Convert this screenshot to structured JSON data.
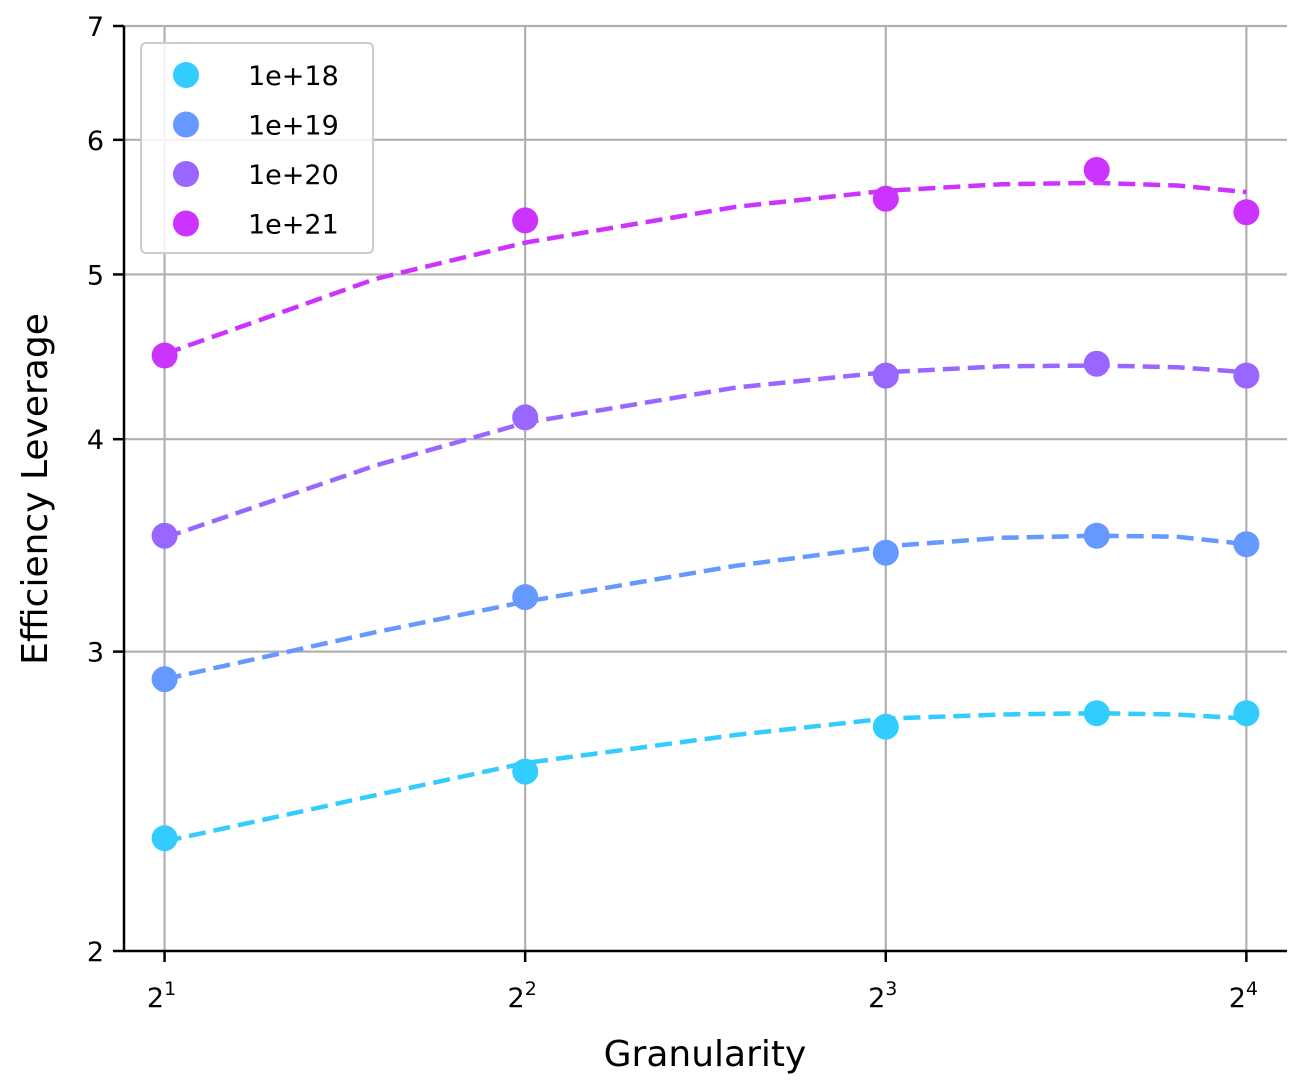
{
  "chart_data": {
    "type": "scatter",
    "xlabel": "Granularity",
    "ylabel": "Efficiency Leverage",
    "x_scale": "log2",
    "y_scale": "log",
    "xlim": [
      1.85,
      17.3
    ],
    "ylim": [
      2,
      7
    ],
    "x_ticks": [
      {
        "value": 2,
        "base": "2",
        "exp": "1"
      },
      {
        "value": 4,
        "base": "2",
        "exp": "2"
      },
      {
        "value": 8,
        "base": "2",
        "exp": "3"
      },
      {
        "value": 16,
        "base": "2",
        "exp": "4"
      }
    ],
    "y_ticks": [
      {
        "value": 2,
        "label": "2"
      },
      {
        "value": 3,
        "label": "3"
      },
      {
        "value": 4,
        "label": "4"
      },
      {
        "value": 5,
        "label": "5"
      },
      {
        "value": 6,
        "label": "6"
      },
      {
        "value": 7,
        "label": "7"
      }
    ],
    "grid": true,
    "legend_position": "top-left",
    "series": [
      {
        "name": "1e+18",
        "color": "#33ccff",
        "points": [
          [
            2,
            2.33
          ],
          [
            4,
            2.55
          ],
          [
            8,
            2.71
          ],
          [
            12,
            2.76
          ],
          [
            16,
            2.76
          ]
        ],
        "fit": [
          [
            2,
            2.32
          ],
          [
            3,
            2.47
          ],
          [
            4,
            2.58
          ],
          [
            6,
            2.68
          ],
          [
            8,
            2.74
          ],
          [
            10,
            2.755
          ],
          [
            12,
            2.76
          ],
          [
            14,
            2.755
          ],
          [
            16,
            2.74
          ]
        ]
      },
      {
        "name": "1e+19",
        "color": "#6699ff",
        "points": [
          [
            2,
            2.89
          ],
          [
            4,
            3.23
          ],
          [
            8,
            3.43
          ],
          [
            12,
            3.51
          ],
          [
            16,
            3.47
          ]
        ],
        "fit": [
          [
            2,
            2.89
          ],
          [
            3,
            3.08
          ],
          [
            4,
            3.21
          ],
          [
            6,
            3.37
          ],
          [
            8,
            3.46
          ],
          [
            10,
            3.5
          ],
          [
            12,
            3.51
          ],
          [
            14,
            3.505
          ],
          [
            16,
            3.47
          ]
        ]
      },
      {
        "name": "1e+20",
        "color": "#9966ff",
        "points": [
          [
            2,
            3.51
          ],
          [
            4,
            4.12
          ],
          [
            8,
            4.36
          ],
          [
            12,
            4.43
          ],
          [
            16,
            4.36
          ]
        ],
        "fit": [
          [
            2,
            3.5
          ],
          [
            3,
            3.86
          ],
          [
            4,
            4.09
          ],
          [
            6,
            4.29
          ],
          [
            8,
            4.38
          ],
          [
            10,
            4.415
          ],
          [
            12,
            4.42
          ],
          [
            14,
            4.41
          ],
          [
            16,
            4.38
          ]
        ]
      },
      {
        "name": "1e+21",
        "color": "#cc33ff",
        "points": [
          [
            2,
            4.48
          ],
          [
            4,
            5.38
          ],
          [
            8,
            5.54
          ],
          [
            12,
            5.76
          ],
          [
            16,
            5.44
          ]
        ],
        "fit": [
          [
            2,
            4.49
          ],
          [
            3,
            4.97
          ],
          [
            4,
            5.22
          ],
          [
            6,
            5.48
          ],
          [
            8,
            5.6
          ],
          [
            10,
            5.65
          ],
          [
            12,
            5.66
          ],
          [
            14,
            5.64
          ],
          [
            16,
            5.59
          ]
        ]
      }
    ]
  }
}
